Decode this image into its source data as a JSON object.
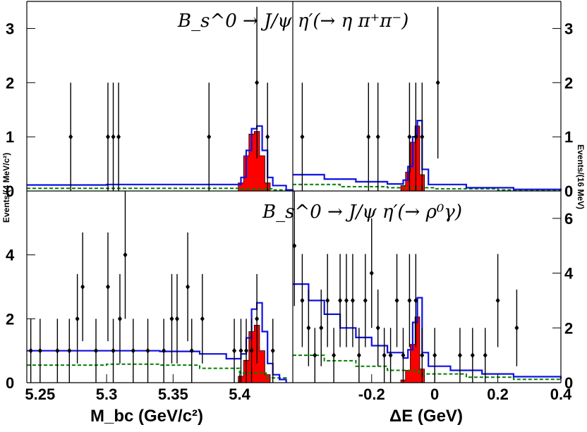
{
  "chart_data": {
    "type": "histogram-fit",
    "title_top": "B_s^0 → J/ψ η′(→ η π⁺π⁻)",
    "title_bottom": "B_s^0 → J/ψ η′(→ ρ⁰γ)",
    "xlabel_left": "M_bc (GeV/c²)",
    "xlabel_right": "ΔE (GeV)",
    "ylabel_left": "Events/(4 MeV/c²)",
    "ylabel_right": "Events/(16 MeV)",
    "colors": {
      "signal_fill": "#ff0000",
      "total_fit": "#1010e0",
      "background": "#008000",
      "data": "#000000"
    },
    "left_xlim": [
      5.24,
      5.44
    ],
    "right_xlim": [
      -0.45,
      0.4
    ],
    "left_xticks": [
      "5.25",
      "5.3",
      "5.35",
      "5.4"
    ],
    "right_xticks": [
      "-0.2",
      "0",
      "0.2",
      "0.4"
    ],
    "panels": [
      {
        "id": "top-left",
        "x": "Mbc",
        "ylim": [
          0,
          3.5
        ],
        "yticks": [
          0,
          1,
          2,
          3
        ],
        "data_points": [
          {
            "x": 5.273,
            "y": 1,
            "err": 1
          },
          {
            "x": 5.301,
            "y": 1,
            "err": 1
          },
          {
            "x": 5.305,
            "y": 1,
            "err": 1
          },
          {
            "x": 5.309,
            "y": 1,
            "err": 1
          },
          {
            "x": 5.377,
            "y": 1,
            "err": 1
          },
          {
            "x": 5.413,
            "y": 2,
            "err": 1.4
          },
          {
            "x": 5.421,
            "y": 1,
            "err": 1
          }
        ],
        "total_fit": [
          [
            5.24,
            0.11
          ],
          [
            5.3,
            0.12
          ],
          [
            5.36,
            0.12
          ],
          [
            5.395,
            0.12
          ],
          [
            5.401,
            0.25
          ],
          [
            5.405,
            0.75
          ],
          [
            5.409,
            1.15
          ],
          [
            5.413,
            1.2
          ],
          [
            5.417,
            0.75
          ],
          [
            5.421,
            0.25
          ],
          [
            5.425,
            0.1
          ],
          [
            5.435,
            0.02
          ],
          [
            5.44,
            0.0
          ]
        ],
        "signal": [
          [
            5.401,
            0.15
          ],
          [
            5.405,
            0.65
          ],
          [
            5.409,
            1.05
          ],
          [
            5.413,
            1.1
          ],
          [
            5.417,
            0.65
          ],
          [
            5.421,
            0.15
          ]
        ],
        "background": [
          [
            5.24,
            0.05
          ],
          [
            5.3,
            0.05
          ],
          [
            5.37,
            0.05
          ],
          [
            5.4,
            0.04
          ],
          [
            5.425,
            0.02
          ],
          [
            5.435,
            0.0
          ]
        ]
      },
      {
        "id": "top-right",
        "x": "dE",
        "ylim": [
          0,
          3.5
        ],
        "yticks": [
          0,
          1,
          2,
          3
        ],
        "data_points": [
          {
            "x": -0.42,
            "y": 1,
            "err": 1
          },
          {
            "x": -0.21,
            "y": 1,
            "err": 1
          },
          {
            "x": -0.18,
            "y": 1,
            "err": 1
          },
          {
            "x": -0.08,
            "y": 1,
            "err": 1
          },
          {
            "x": -0.06,
            "y": 1,
            "err": 1
          },
          {
            "x": -0.04,
            "y": 1,
            "err": 1
          },
          {
            "x": 0.01,
            "y": 2,
            "err": 1.4
          }
        ],
        "total_fit": [
          [
            -0.45,
            0.3
          ],
          [
            -0.35,
            0.22
          ],
          [
            -0.25,
            0.17
          ],
          [
            -0.15,
            0.13
          ],
          [
            -0.1,
            0.2
          ],
          [
            -0.085,
            0.45
          ],
          [
            -0.07,
            1.0
          ],
          [
            -0.055,
            1.3
          ],
          [
            -0.04,
            0.4
          ],
          [
            -0.02,
            0.12
          ],
          [
            0.1,
            0.06
          ],
          [
            0.25,
            0.03
          ],
          [
            0.4,
            0.02
          ]
        ],
        "signal": [
          [
            -0.1,
            0.1
          ],
          [
            -0.085,
            0.35
          ],
          [
            -0.07,
            0.9
          ],
          [
            -0.055,
            1.2
          ],
          [
            -0.04,
            0.3
          ]
        ],
        "background": [
          [
            -0.45,
            0.12
          ],
          [
            -0.3,
            0.08
          ],
          [
            -0.15,
            0.06
          ],
          [
            0,
            0.04
          ],
          [
            0.2,
            0.02
          ],
          [
            0.4,
            0.01
          ]
        ]
      },
      {
        "id": "bottom-left",
        "x": "Mbc",
        "ylim": [
          0,
          6
        ],
        "yticks": [
          0,
          2,
          4
        ],
        "data_points": [
          {
            "x": 5.243,
            "y": 1,
            "err": 1
          },
          {
            "x": 5.25,
            "y": 1,
            "err": 1
          },
          {
            "x": 5.263,
            "y": 1,
            "err": 1
          },
          {
            "x": 5.272,
            "y": 1,
            "err": 1
          },
          {
            "x": 5.278,
            "y": 2,
            "err": 1.4
          },
          {
            "x": 5.282,
            "y": 3,
            "err": 1.7
          },
          {
            "x": 5.292,
            "y": 1,
            "err": 1
          },
          {
            "x": 5.301,
            "y": 3,
            "err": 1.7
          },
          {
            "x": 5.305,
            "y": 1,
            "err": 1
          },
          {
            "x": 5.31,
            "y": 2,
            "err": 1.4
          },
          {
            "x": 5.314,
            "y": 4,
            "err": 2
          },
          {
            "x": 5.32,
            "y": 1,
            "err": 1
          },
          {
            "x": 5.331,
            "y": 1,
            "err": 1
          },
          {
            "x": 5.343,
            "y": 1,
            "err": 1
          },
          {
            "x": 5.349,
            "y": 2,
            "err": 1.4
          },
          {
            "x": 5.353,
            "y": 2,
            "err": 1.4
          },
          {
            "x": 5.361,
            "y": 3,
            "err": 1.7
          },
          {
            "x": 5.364,
            "y": 1,
            "err": 1
          },
          {
            "x": 5.372,
            "y": 2,
            "err": 1.4
          },
          {
            "x": 5.396,
            "y": 1,
            "err": 1
          },
          {
            "x": 5.401,
            "y": 1,
            "err": 1
          },
          {
            "x": 5.405,
            "y": 1,
            "err": 1
          },
          {
            "x": 5.409,
            "y": 1,
            "err": 1
          },
          {
            "x": 5.413,
            "y": 2,
            "err": 1.4
          },
          {
            "x": 5.425,
            "y": 1,
            "err": 1
          }
        ],
        "total_fit": [
          [
            5.24,
            1.0
          ],
          [
            5.3,
            1.0
          ],
          [
            5.34,
            0.98
          ],
          [
            5.37,
            0.9
          ],
          [
            5.39,
            0.75
          ],
          [
            5.401,
            0.9
          ],
          [
            5.405,
            1.4
          ],
          [
            5.409,
            2.3
          ],
          [
            5.413,
            2.5
          ],
          [
            5.417,
            1.6
          ],
          [
            5.421,
            0.6
          ],
          [
            5.425,
            0.25
          ],
          [
            5.43,
            0.1
          ],
          [
            5.435,
            0.0
          ]
        ],
        "signal": [
          [
            5.401,
            0.2
          ],
          [
            5.405,
            0.7
          ],
          [
            5.409,
            1.6
          ],
          [
            5.413,
            1.8
          ],
          [
            5.417,
            1.0
          ],
          [
            5.421,
            0.25
          ]
        ],
        "background": [
          [
            5.24,
            0.55
          ],
          [
            5.3,
            0.58
          ],
          [
            5.34,
            0.55
          ],
          [
            5.37,
            0.45
          ],
          [
            5.4,
            0.3
          ],
          [
            5.42,
            0.15
          ],
          [
            5.435,
            0.0
          ]
        ]
      },
      {
        "id": "bottom-right",
        "x": "dE",
        "ylim": [
          0,
          7
        ],
        "yticks": [
          0,
          2,
          4,
          6
        ],
        "data_points": [
          {
            "x": -0.445,
            "y": 5,
            "err": 2.2
          },
          {
            "x": -0.42,
            "y": 3,
            "err": 1.7
          },
          {
            "x": -0.4,
            "y": 2,
            "err": 1.4
          },
          {
            "x": -0.38,
            "y": 1,
            "err": 1
          },
          {
            "x": -0.36,
            "y": 2,
            "err": 1.4
          },
          {
            "x": -0.34,
            "y": 3,
            "err": 1.7
          },
          {
            "x": -0.32,
            "y": 1,
            "err": 1
          },
          {
            "x": -0.3,
            "y": 3,
            "err": 1.7
          },
          {
            "x": -0.28,
            "y": 3,
            "err": 1.7
          },
          {
            "x": -0.26,
            "y": 3,
            "err": 1.7
          },
          {
            "x": -0.24,
            "y": 1,
            "err": 1
          },
          {
            "x": -0.22,
            "y": 3,
            "err": 1.7
          },
          {
            "x": -0.2,
            "y": 4,
            "err": 2
          },
          {
            "x": -0.18,
            "y": 2,
            "err": 1.4
          },
          {
            "x": -0.16,
            "y": 1,
            "err": 1
          },
          {
            "x": -0.14,
            "y": 1,
            "err": 1
          },
          {
            "x": -0.12,
            "y": 3,
            "err": 1.7
          },
          {
            "x": -0.1,
            "y": 1,
            "err": 1
          },
          {
            "x": -0.08,
            "y": 3,
            "err": 1.7
          },
          {
            "x": -0.06,
            "y": 3,
            "err": 1.7
          },
          {
            "x": -0.04,
            "y": 1,
            "err": 1
          },
          {
            "x": 0.0,
            "y": 1,
            "err": 1
          },
          {
            "x": 0.08,
            "y": 1,
            "err": 1
          },
          {
            "x": 0.12,
            "y": 1,
            "err": 1
          },
          {
            "x": 0.16,
            "y": 1,
            "err": 1
          },
          {
            "x": 0.2,
            "y": 3,
            "err": 1.7
          },
          {
            "x": 0.26,
            "y": 2,
            "err": 1.4
          }
        ],
        "total_fit": [
          [
            -0.45,
            3.6
          ],
          [
            -0.4,
            3.0
          ],
          [
            -0.35,
            2.5
          ],
          [
            -0.3,
            2.0
          ],
          [
            -0.25,
            1.65
          ],
          [
            -0.2,
            1.35
          ],
          [
            -0.15,
            1.1
          ],
          [
            -0.1,
            0.9
          ],
          [
            -0.085,
            1.2
          ],
          [
            -0.07,
            2.2
          ],
          [
            -0.055,
            3.1
          ],
          [
            -0.04,
            1.1
          ],
          [
            -0.02,
            0.6
          ],
          [
            0.05,
            0.45
          ],
          [
            0.15,
            0.32
          ],
          [
            0.25,
            0.22
          ],
          [
            0.4,
            0.12
          ]
        ],
        "signal": [
          [
            -0.1,
            0.1
          ],
          [
            -0.085,
            0.45
          ],
          [
            -0.07,
            1.4
          ],
          [
            -0.055,
            2.4
          ],
          [
            -0.04,
            0.5
          ]
        ],
        "background": [
          [
            -0.45,
            1.0
          ],
          [
            -0.35,
            0.8
          ],
          [
            -0.25,
            0.6
          ],
          [
            -0.15,
            0.45
          ],
          [
            -0.05,
            0.32
          ],
          [
            0.1,
            0.2
          ],
          [
            0.25,
            0.12
          ],
          [
            0.4,
            0.08
          ]
        ]
      }
    ]
  }
}
